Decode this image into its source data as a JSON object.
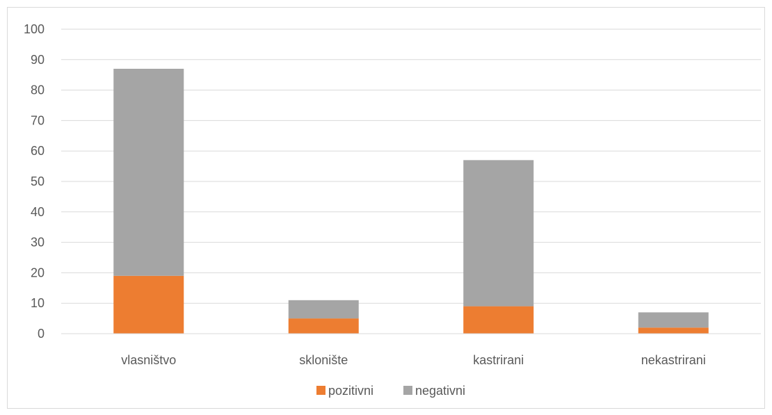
{
  "chart_data": {
    "type": "bar",
    "stacked": true,
    "categories": [
      "vlasništvo",
      "sklonište",
      "kastrirani",
      "nekastrirani"
    ],
    "series": [
      {
        "name": "pozitivni",
        "values": [
          19,
          5,
          9,
          2
        ],
        "color": "#ED7D31"
      },
      {
        "name": "negativni",
        "values": [
          68,
          6,
          48,
          5
        ],
        "color": "#A5A5A5"
      }
    ],
    "ylim": [
      0,
      100
    ],
    "yticks": [
      0,
      10,
      20,
      30,
      40,
      50,
      60,
      70,
      80,
      90,
      100
    ],
    "grid": true,
    "legend_position": "bottom",
    "title": "",
    "xlabel": "",
    "ylabel": ""
  }
}
